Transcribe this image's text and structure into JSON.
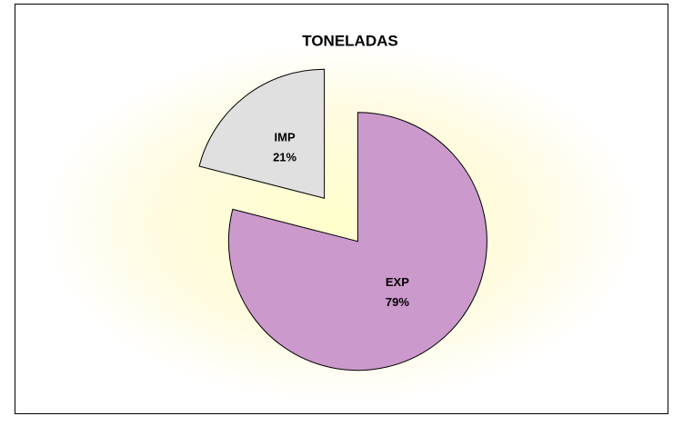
{
  "chart_data": {
    "type": "pie",
    "title": "TONELADAS",
    "categories": [
      "EXP",
      "IMP"
    ],
    "values": [
      79,
      21
    ],
    "value_labels": [
      "79%",
      "21%"
    ],
    "colors": [
      "#cc99cc",
      "#e0e0e0"
    ],
    "exploded": true
  }
}
